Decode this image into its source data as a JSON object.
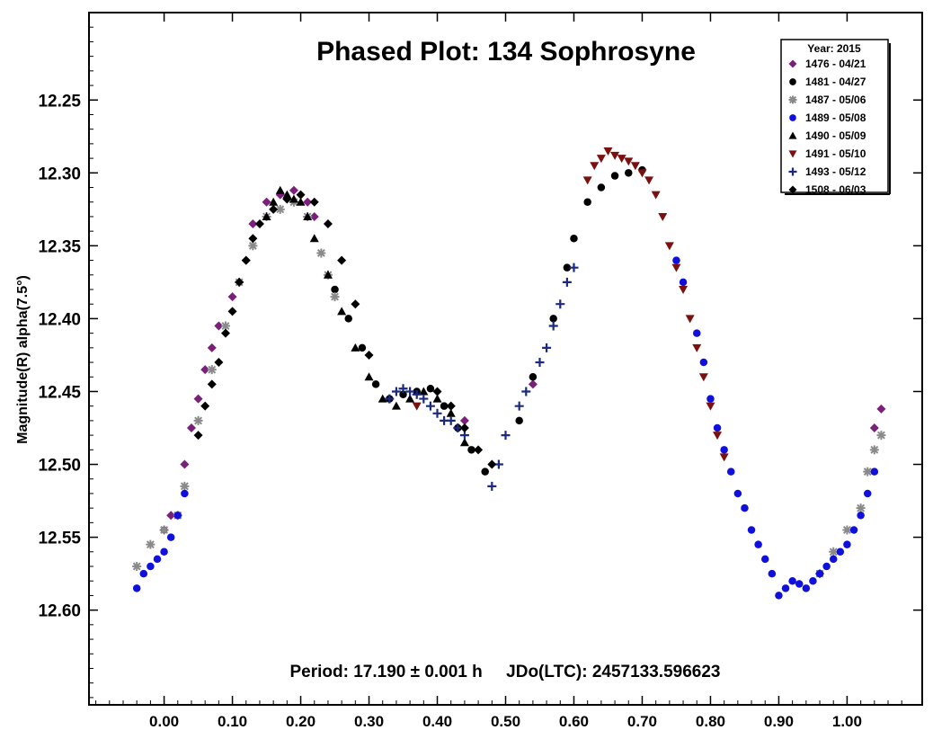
{
  "chart_data": {
    "type": "scatter",
    "title": "Phased Plot: 134 Sophrosyne",
    "xlabel": "",
    "ylabel": "Magnitude(R) alpha(7.5°)",
    "xlim": [
      -0.11,
      1.11
    ],
    "ylim": [
      12.19,
      12.665
    ],
    "y_inverted": true,
    "x_ticks": [
      "0.00",
      "0.10",
      "0.20",
      "0.30",
      "0.40",
      "0.50",
      "0.60",
      "0.70",
      "0.80",
      "0.90",
      "1.00"
    ],
    "y_ticks": [
      "12.25",
      "12.30",
      "12.35",
      "12.40",
      "12.45",
      "12.50",
      "12.55",
      "12.60"
    ],
    "grid": false,
    "legend_title": "Year: 2015",
    "legend_position": "top-right",
    "annotation": "Period: 17.190 ± 0.001 h     JDo(LTC): 2457133.596623",
    "series": [
      {
        "name": "1476 - 04/21",
        "marker": "diamond",
        "color": "#7a1f7a",
        "x": [
          0.0,
          0.01,
          0.03,
          0.04,
          0.05,
          0.06,
          0.07,
          0.08,
          0.1,
          0.12,
          0.13,
          0.15,
          0.17,
          0.19,
          0.21,
          0.22,
          0.42,
          0.44,
          0.54,
          1.04,
          1.05
        ],
        "y": [
          12.545,
          12.535,
          12.5,
          12.475,
          12.455,
          12.435,
          12.42,
          12.405,
          12.385,
          12.36,
          12.335,
          12.32,
          12.315,
          12.312,
          12.32,
          12.33,
          12.46,
          12.47,
          12.445,
          12.475,
          12.462
        ]
      },
      {
        "name": "1481 - 04/27",
        "marker": "circle",
        "color": "#000000",
        "x": [
          0.25,
          0.27,
          0.29,
          0.31,
          0.33,
          0.35,
          0.37,
          0.39,
          0.41,
          0.43,
          0.45,
          0.47,
          0.52,
          0.54,
          0.57,
          0.59,
          0.6,
          0.62,
          0.64,
          0.66,
          0.68,
          0.7
        ],
        "y": [
          12.38,
          12.4,
          12.42,
          12.445,
          12.455,
          12.452,
          12.45,
          12.448,
          12.46,
          12.475,
          12.49,
          12.505,
          12.47,
          12.44,
          12.4,
          12.365,
          12.345,
          12.32,
          12.31,
          12.302,
          12.3,
          12.298
        ]
      },
      {
        "name": "1487 - 05/06",
        "marker": "asterisk",
        "color": "#8a8a8a",
        "x": [
          -0.04,
          -0.02,
          0.0,
          0.02,
          0.03,
          0.05,
          0.07,
          0.09,
          0.11,
          0.13,
          0.15,
          0.17,
          0.19,
          0.21,
          0.23,
          0.24,
          0.25,
          0.96,
          0.98,
          1.0,
          1.02,
          1.03,
          1.04,
          1.05
        ],
        "y": [
          12.57,
          12.555,
          12.545,
          12.535,
          12.515,
          12.47,
          12.435,
          12.405,
          12.375,
          12.35,
          12.33,
          12.325,
          12.32,
          12.33,
          12.355,
          12.37,
          12.385,
          12.575,
          12.56,
          12.545,
          12.53,
          12.505,
          12.49,
          12.48
        ]
      },
      {
        "name": "1489 - 05/08",
        "marker": "circle",
        "color": "#1010dd",
        "x": [
          -0.04,
          -0.03,
          -0.02,
          -0.01,
          0.0,
          0.01,
          0.02,
          0.03,
          0.75,
          0.76,
          0.78,
          0.79,
          0.8,
          0.81,
          0.82,
          0.83,
          0.84,
          0.85,
          0.86,
          0.87,
          0.88,
          0.89,
          0.9,
          0.91,
          0.92,
          0.93,
          0.94,
          0.95,
          0.96,
          0.97,
          0.98,
          0.99,
          1.0,
          1.01,
          1.02,
          1.03,
          1.04
        ],
        "y": [
          12.585,
          12.575,
          12.57,
          12.565,
          12.56,
          12.55,
          12.535,
          12.52,
          12.36,
          12.375,
          12.41,
          12.43,
          12.455,
          12.475,
          12.49,
          12.505,
          12.52,
          12.53,
          12.545,
          12.555,
          12.565,
          12.575,
          12.59,
          12.585,
          12.58,
          12.582,
          12.585,
          12.58,
          12.575,
          12.57,
          12.565,
          12.56,
          12.555,
          12.545,
          12.535,
          12.52,
          12.505
        ]
      },
      {
        "name": "1490 - 05/09",
        "marker": "triangle-up",
        "color": "#000000",
        "x": [
          0.15,
          0.16,
          0.17,
          0.18,
          0.19,
          0.2,
          0.21,
          0.22,
          0.24,
          0.26,
          0.28,
          0.3,
          0.32,
          0.34,
          0.36,
          0.38,
          0.4,
          0.42,
          0.44
        ],
        "y": [
          12.33,
          12.32,
          12.312,
          12.315,
          12.318,
          12.32,
          12.33,
          12.345,
          12.37,
          12.395,
          12.42,
          12.44,
          12.455,
          12.46,
          12.455,
          12.45,
          12.455,
          12.465,
          12.485
        ]
      },
      {
        "name": "1491 - 05/10",
        "marker": "triangle-down",
        "color": "#7a1010",
        "x": [
          0.62,
          0.63,
          0.64,
          0.65,
          0.66,
          0.67,
          0.68,
          0.69,
          0.7,
          0.71,
          0.72,
          0.73,
          0.74,
          0.75,
          0.76,
          0.77,
          0.78,
          0.79,
          0.8,
          0.81,
          0.82,
          0.37
        ],
        "y": [
          12.305,
          12.295,
          12.29,
          12.285,
          12.288,
          12.29,
          12.292,
          12.295,
          12.3,
          12.305,
          12.315,
          12.33,
          12.35,
          12.365,
          12.38,
          12.4,
          12.42,
          12.44,
          12.46,
          12.48,
          12.495,
          12.46
        ]
      },
      {
        "name": "1493 - 05/12",
        "marker": "plus",
        "color": "#1a2a80",
        "x": [
          0.33,
          0.34,
          0.35,
          0.36,
          0.37,
          0.38,
          0.39,
          0.4,
          0.41,
          0.42,
          0.43,
          0.44,
          0.48,
          0.49,
          0.5,
          0.52,
          0.53,
          0.55,
          0.56,
          0.57,
          0.58,
          0.59,
          0.6
        ],
        "y": [
          12.455,
          12.45,
          12.448,
          12.45,
          12.452,
          12.455,
          12.46,
          12.465,
          12.47,
          12.47,
          12.475,
          12.48,
          12.515,
          12.5,
          12.48,
          12.46,
          12.45,
          12.43,
          12.42,
          12.405,
          12.39,
          12.375,
          12.365
        ]
      },
      {
        "name": "1508 - 06/03",
        "marker": "diamond",
        "color": "#000000",
        "x": [
          0.05,
          0.06,
          0.07,
          0.08,
          0.09,
          0.1,
          0.11,
          0.12,
          0.13,
          0.14,
          0.16,
          0.18,
          0.2,
          0.22,
          0.24,
          0.26,
          0.28,
          0.3,
          0.4,
          0.42,
          0.44,
          0.46,
          0.48
        ],
        "y": [
          12.48,
          12.46,
          12.445,
          12.43,
          12.41,
          12.395,
          12.375,
          12.36,
          12.345,
          12.335,
          12.325,
          12.318,
          12.315,
          12.32,
          12.335,
          12.36,
          12.39,
          12.425,
          12.45,
          12.46,
          12.475,
          12.49,
          12.5
        ]
      }
    ]
  }
}
